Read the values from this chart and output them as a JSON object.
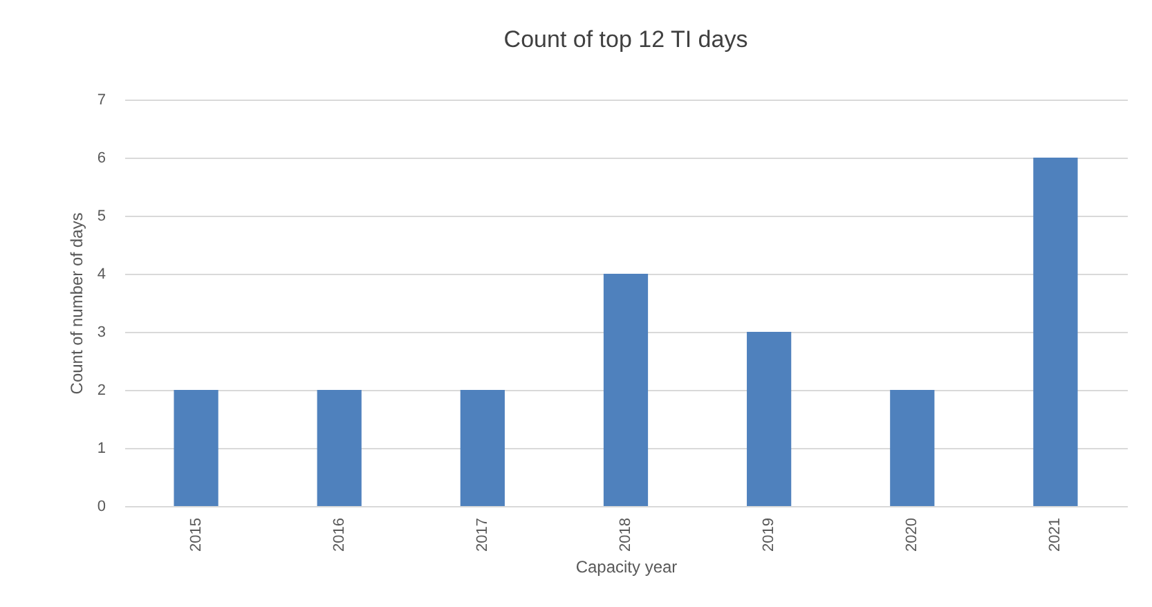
{
  "chart_data": {
    "type": "bar",
    "title": "Count of top 12 TI days",
    "xlabel": "Capacity year",
    "ylabel": "Count of number of days",
    "categories": [
      "2015",
      "2016",
      "2017",
      "2018",
      "2019",
      "2020",
      "2021"
    ],
    "values": [
      2,
      2,
      2,
      4,
      3,
      2,
      6
    ],
    "color": "#4f81bd",
    "ylim": [
      0,
      7
    ],
    "yticks": [
      0,
      1,
      2,
      3,
      4,
      5,
      6,
      7
    ],
    "grid": "y"
  }
}
